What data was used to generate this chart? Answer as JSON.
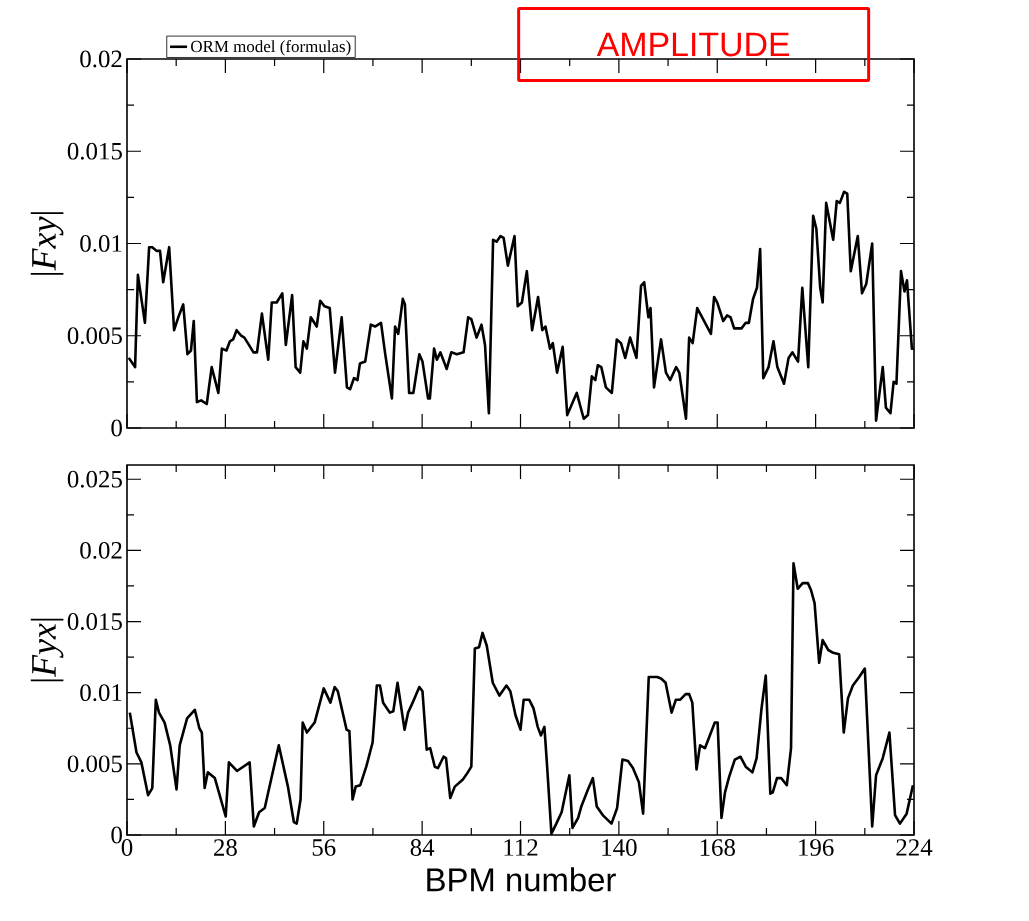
{
  "chart_data": [
    {
      "type": "line",
      "ylabel": "|*Fxy*|",
      "xlim": [
        0,
        224
      ],
      "ylim": [
        0,
        0.02
      ],
      "xticks": [
        0,
        28,
        56,
        84,
        112,
        140,
        168,
        196,
        224
      ],
      "yticks": [
        0,
        0.005,
        0.01,
        0.015,
        0.02
      ],
      "tick_labels": "y",
      "legend": "top left",
      "annotations": [
        "AMPLITUDE"
      ],
      "series": [
        {
          "name": "ORM model (formulas)",
          "color": "#000000",
          "x": [
            0.5,
            2.3,
            3.1,
            5.1,
            6.3,
            7.2,
            8.4,
            9.4,
            10.3,
            12,
            13.4,
            14.6,
            16,
            17.2,
            18.2,
            19,
            19.9,
            21.1,
            22.7,
            24.1,
            26,
            27,
            28.3,
            29.3,
            30.2,
            31.2,
            32.5,
            33.4,
            34.4,
            36,
            37,
            38.4,
            40.2,
            41.2,
            42.6,
            44.2,
            45.2,
            47,
            48,
            49.3,
            50.2,
            51.2,
            52.3,
            54,
            55,
            56.2,
            57.7,
            59.2,
            61.1,
            62.6,
            63.5,
            64.6,
            65.6,
            66.3,
            67.8,
            69.4,
            70.6,
            72.3,
            73.5,
            75.4,
            76.3,
            77.2,
            78.5,
            79.1,
            80.3,
            81.5,
            83.2,
            84.1,
            85.7,
            86.2,
            87.4,
            88.2,
            89.2,
            91,
            92.3,
            93.9,
            95.8,
            97.1,
            98,
            99.5,
            100.9,
            101.9,
            103,
            104.2,
            105.2,
            106.3,
            107.2,
            108.4,
            110.3,
            111.2,
            112.4,
            113.8,
            115.3,
            117,
            118.2,
            119.1,
            120.4,
            121.2,
            122.4,
            124,
            125.3,
            128,
            130,
            131.2,
            132.3,
            133.3,
            134,
            135,
            136.3,
            138,
            139.4,
            140.6,
            141.8,
            143.2,
            145,
            146.3,
            147.2,
            148.4,
            149,
            150,
            152,
            153.4,
            154.6,
            156.3,
            157.2,
            159.1,
            160,
            161,
            162.3,
            166.2,
            167.1,
            168,
            169.7,
            170.8,
            171.8,
            172.8,
            174.9,
            176.1,
            177,
            178.2,
            179.3,
            180.2,
            181.1,
            182.6,
            184,
            185.1,
            187,
            188.3,
            189.4,
            191,
            192.2,
            193.9,
            195.3,
            196.2,
            197.3,
            198,
            199,
            201,
            202,
            202.9,
            204.1,
            205,
            206,
            208,
            209.2,
            210.4,
            212.1,
            213.2,
            215.1,
            216,
            217.3,
            218.2,
            219,
            220.3,
            221.3,
            222,
            223.4,
            224
          ],
          "values": [
            0.0038,
            0.0033,
            0.0083,
            0.0057,
            0.0098,
            0.0098,
            0.0096,
            0.0096,
            0.0079,
            0.0098,
            0.0053,
            0.006,
            0.0067,
            0.004,
            0.0042,
            0.0058,
            0.0014,
            0.0015,
            0.0013,
            0.0033,
            0.0019,
            0.0043,
            0.0042,
            0.0047,
            0.0048,
            0.0053,
            0.005,
            0.0049,
            0.0046,
            0.0041,
            0.0041,
            0.0062,
            0.0037,
            0.0068,
            0.0068,
            0.0073,
            0.0045,
            0.0072,
            0.0033,
            0.003,
            0.0047,
            0.0043,
            0.006,
            0.0055,
            0.0069,
            0.0066,
            0.0065,
            0.003,
            0.006,
            0.0022,
            0.0021,
            0.0027,
            0.0026,
            0.0035,
            0.0036,
            0.0056,
            0.0055,
            0.0057,
            0.004,
            0.0016,
            0.0055,
            0.0051,
            0.007,
            0.0067,
            0.0019,
            0.0019,
            0.004,
            0.0036,
            0.0016,
            0.0016,
            0.0043,
            0.0037,
            0.0041,
            0.0032,
            0.0041,
            0.004,
            0.0041,
            0.006,
            0.0059,
            0.0049,
            0.0056,
            0.0045,
            0.0008,
            0.0102,
            0.0101,
            0.0104,
            0.0103,
            0.0088,
            0.0104,
            0.0066,
            0.0068,
            0.0085,
            0.0053,
            0.0071,
            0.0053,
            0.0055,
            0.0043,
            0.0046,
            0.003,
            0.0044,
            0.0007,
            0.0019,
            0.0005,
            0.0007,
            0.0028,
            0.0026,
            0.0034,
            0.0033,
            0.0022,
            0.0019,
            0.0048,
            0.0046,
            0.0038,
            0.0049,
            0.0038,
            0.0077,
            0.0079,
            0.006,
            0.0065,
            0.0022,
            0.0048,
            0.003,
            0.0026,
            0.0033,
            0.003,
            0.0005,
            0.0049,
            0.0046,
            0.0065,
            0.0051,
            0.0071,
            0.0068,
            0.0058,
            0.0061,
            0.006,
            0.0054,
            0.0054,
            0.0057,
            0.0057,
            0.007,
            0.0076,
            0.0097,
            0.0027,
            0.0033,
            0.0047,
            0.0033,
            0.0024,
            0.0038,
            0.0041,
            0.0036,
            0.0076,
            0.0033,
            0.0115,
            0.0108,
            0.0076,
            0.0068,
            0.0122,
            0.0102,
            0.0123,
            0.0122,
            0.0128,
            0.0127,
            0.0085,
            0.0104,
            0.0073,
            0.0078,
            0.01,
            0.0004,
            0.0033,
            0.0011,
            0.0008,
            0.0025,
            0.0024,
            0.0085,
            0.0074,
            0.008,
            0.0043,
            0.0043
          ]
        }
      ]
    },
    {
      "type": "line",
      "xlabel": "BPM number",
      "ylabel": "|*Fyx*|",
      "xlim": [
        0,
        224
      ],
      "ylim": [
        0,
        0.026
      ],
      "xticks": [
        0,
        28,
        56,
        84,
        112,
        140,
        168,
        196,
        224
      ],
      "yticks": [
        0,
        0.005,
        0.01,
        0.015,
        0.02,
        0.025
      ],
      "series": [
        {
          "color": "#000000",
          "x": [
            0.8,
            2.7,
            4.1,
            6,
            7.2,
            8.2,
            9.1,
            10.7,
            12.3,
            14.1,
            15,
            17.1,
            19.3,
            20.6,
            21.3,
            22.1,
            23,
            25,
            28.1,
            29,
            31.3,
            34.9,
            36.1,
            37.6,
            39.2,
            43.2,
            45.8,
            47.5,
            48.3,
            49.4,
            50,
            51.2,
            53.4,
            56,
            57.9,
            59.1,
            60,
            62.5,
            63.3,
            64.2,
            65.1,
            66.4,
            68.1,
            69.9,
            71.1,
            72,
            72.9,
            74.8,
            75.8,
            77,
            79,
            80,
            81.3,
            83.2,
            84.1,
            85.3,
            86.3,
            87.6,
            88.5,
            90.1,
            90.8,
            92,
            93.3,
            95.6,
            97,
            98,
            99,
            100.2,
            101.2,
            102.4,
            104.1,
            106,
            108,
            109.1,
            110.6,
            112,
            112.9,
            114.5,
            115.7,
            116.9,
            117.8,
            118.8,
            119.5,
            120.8,
            122.2,
            123.7,
            125.9,
            126.8,
            128.4,
            129.3,
            131.2,
            132.6,
            133.7,
            135.4,
            137.9,
            139.5,
            141,
            142.6,
            144,
            145.7,
            146.9,
            148.5,
            150.9,
            152,
            153.3,
            155,
            156.2,
            157.4,
            159,
            160,
            160.9,
            162.1,
            163.1,
            164.5,
            165.9,
            167.3,
            168.1,
            169.2,
            170.2,
            171.4,
            173,
            174.6,
            176.1,
            178,
            179.2,
            180.6,
            181.8,
            183.1,
            183.8,
            185,
            186.2,
            187.8,
            189,
            189.7,
            190.9,
            192.3,
            193.8,
            194.7,
            195.7,
            197,
            198,
            199.6,
            201,
            202.7,
            204,
            205.2,
            206.6,
            208.4,
            210,
            212.1,
            213.2,
            215.1,
            217,
            218.6,
            220,
            221.9,
            223.7
          ],
          "values": [
            0.0086,
            0.0058,
            0.0051,
            0.0028,
            0.0033,
            0.0095,
            0.0086,
            0.0079,
            0.0063,
            0.0032,
            0.0063,
            0.0082,
            0.0088,
            0.0075,
            0.0072,
            0.0033,
            0.0044,
            0.004,
            0.0013,
            0.0051,
            0.0045,
            0.0051,
            0.0006,
            0.0016,
            0.0019,
            0.0063,
            0.0034,
            0.0009,
            0.0008,
            0.0025,
            0.0079,
            0.0072,
            0.0079,
            0.0103,
            0.0093,
            0.0104,
            0.0101,
            0.0074,
            0.0073,
            0.0025,
            0.0034,
            0.0035,
            0.0048,
            0.0065,
            0.0105,
            0.0105,
            0.0093,
            0.0086,
            0.0087,
            0.0107,
            0.0074,
            0.0086,
            0.0093,
            0.0104,
            0.0101,
            0.006,
            0.0061,
            0.0048,
            0.0047,
            0.0055,
            0.0054,
            0.0026,
            0.0034,
            0.0039,
            0.0044,
            0.0048,
            0.0131,
            0.0132,
            0.0142,
            0.0133,
            0.0107,
            0.0098,
            0.0105,
            0.0101,
            0.0084,
            0.0074,
            0.0095,
            0.0095,
            0.0089,
            0.0076,
            0.007,
            0.0076,
            0.0051,
            0.0001,
            0.0008,
            0.0016,
            0.0042,
            0.0005,
            0.0012,
            0.002,
            0.0032,
            0.004,
            0.002,
            0.0014,
            0.0008,
            0.0019,
            0.0053,
            0.0052,
            0.0047,
            0.0037,
            0.0015,
            0.0111,
            0.0111,
            0.011,
            0.0107,
            0.0086,
            0.0095,
            0.0095,
            0.0099,
            0.0099,
            0.0093,
            0.0046,
            0.0063,
            0.0061,
            0.007,
            0.0079,
            0.0079,
            0.0012,
            0.003,
            0.0041,
            0.0053,
            0.0055,
            0.0048,
            0.0044,
            0.0054,
            0.0089,
            0.0112,
            0.0029,
            0.003,
            0.004,
            0.004,
            0.0035,
            0.0061,
            0.0191,
            0.0173,
            0.0177,
            0.0177,
            0.0172,
            0.0163,
            0.0121,
            0.0137,
            0.013,
            0.0128,
            0.0127,
            0.0072,
            0.0096,
            0.0105,
            0.0111,
            0.0117,
            0.0006,
            0.0042,
            0.0054,
            0.0072,
            0.0014,
            0.0008,
            0.0015,
            0.0035
          ]
        }
      ]
    }
  ]
}
